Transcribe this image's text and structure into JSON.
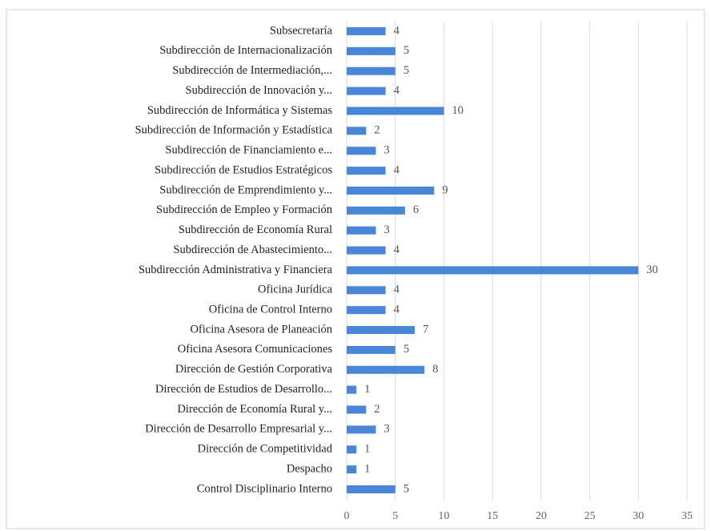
{
  "chart_data": {
    "type": "bar",
    "orientation": "horizontal",
    "categories": [
      "Subsecretaría",
      "Subdirección de Internacionalización",
      "Subdirección de Intermediación,...",
      "Subdirección de Innovación y...",
      "Subdirección de Informática y Sistemas",
      "Subdirección de Información y Estadística",
      "Subdirección de Financiamiento e...",
      "Subdirección de Estudios Estratégicos",
      "Subdirección de Emprendimiento y...",
      "Subdirección de Empleo y Formación",
      "Subdirección de Economía Rural",
      "Subdirección de Abastecimiento...",
      "Subdirección Administrativa y Financiera",
      "Oficina Jurídica",
      "Oficina de Control Interno",
      "Oficina Asesora de Planeación",
      "Oficina Asesora Comunicaciones",
      "Dirección de Gestión Corporativa",
      "Dirección de Estudios de Desarrollo...",
      "Dirección de Economía Rural y...",
      "Dirección de Desarrollo Empresarial y...",
      "Dirección de Competitividad",
      "Despacho",
      "Control Disciplinario Interno"
    ],
    "values": [
      4,
      5,
      5,
      4,
      10,
      2,
      3,
      4,
      9,
      6,
      3,
      4,
      30,
      4,
      4,
      7,
      5,
      8,
      1,
      2,
      3,
      1,
      1,
      5
    ],
    "color": "#4a86d8",
    "xlim": [
      0,
      35
    ],
    "xticks": [
      0,
      5,
      10,
      15,
      20,
      25,
      30,
      35
    ],
    "grid": true
  }
}
